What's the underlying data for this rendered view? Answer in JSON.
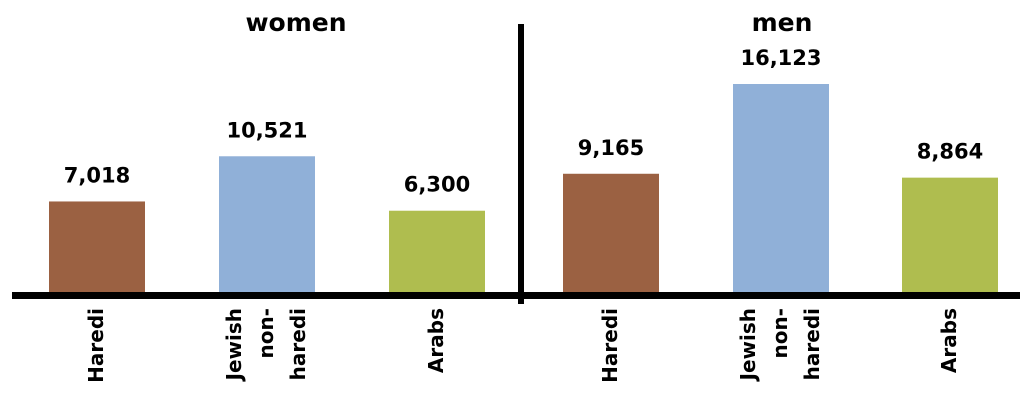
{
  "chart_data": [
    {
      "type": "bar",
      "title": "women",
      "categories": [
        "Haredi",
        "Jewish non-haredi",
        "Arabs"
      ],
      "category_lines": [
        [
          "Haredi"
        ],
        [
          "Jewish",
          "non-",
          "haredi"
        ],
        [
          "Arabs"
        ]
      ],
      "values": [
        7018,
        10521,
        6300
      ],
      "labels": [
        "7,018",
        "10,521",
        "6,300"
      ],
      "colors": [
        "#9B6142",
        "#90B0D8",
        "#AFBD4F"
      ],
      "ylim": [
        0,
        17000
      ],
      "grid": false,
      "legend": "none"
    },
    {
      "type": "bar",
      "title": "men",
      "categories": [
        "Haredi",
        "Jewish non-haredi",
        "Arabs"
      ],
      "category_lines": [
        [
          "Haredi"
        ],
        [
          "Jewish",
          "non-",
          "haredi"
        ],
        [
          "Arabs"
        ]
      ],
      "values": [
        9165,
        16123,
        8864
      ],
      "labels": [
        "9,165",
        "16,123",
        "8,864"
      ],
      "colors": [
        "#9B6142",
        "#90B0D8",
        "#AFBD4F"
      ],
      "ylim": [
        0,
        17000
      ],
      "grid": false,
      "legend": "none"
    }
  ]
}
